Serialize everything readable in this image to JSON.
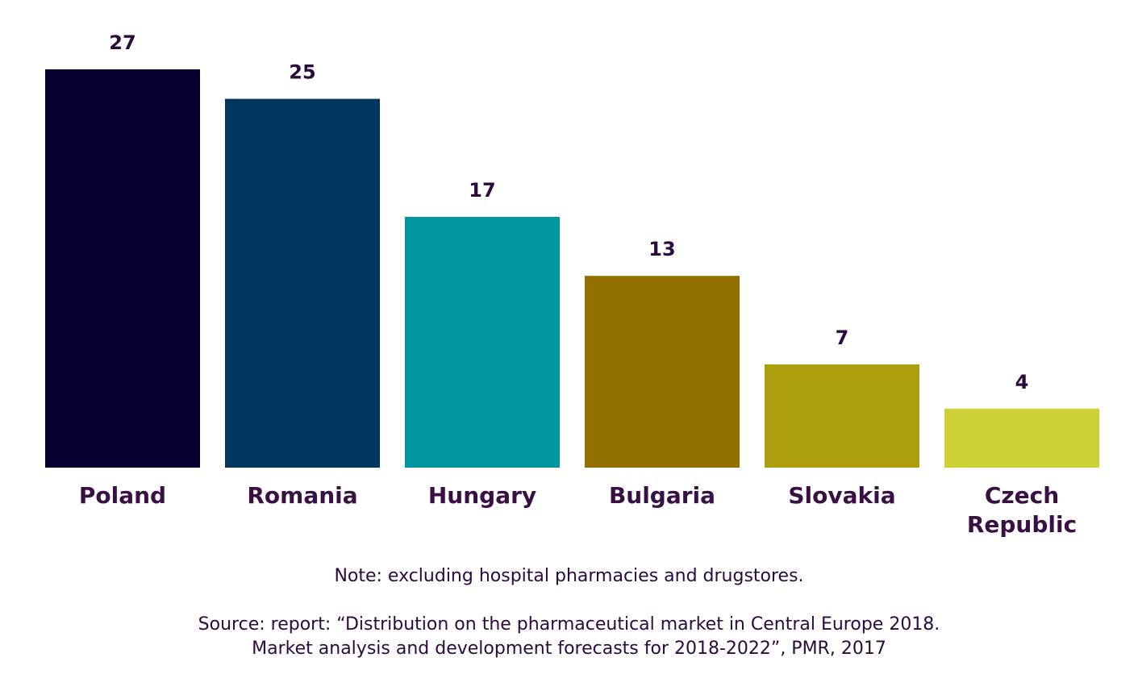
{
  "chart_data": {
    "type": "bar",
    "categories": [
      "Poland",
      "Romania",
      "Hungary",
      "Bulgaria",
      "Slovakia",
      "Czech Republic"
    ],
    "category_lines": [
      [
        "Poland"
      ],
      [
        "Romania"
      ],
      [
        "Hungary"
      ],
      [
        "Bulgaria"
      ],
      [
        "Slovakia"
      ],
      [
        "Czech",
        "Republic"
      ]
    ],
    "values": [
      27,
      25,
      17,
      13,
      7,
      4
    ],
    "value_labels": [
      "27",
      "25",
      "17",
      "13",
      "7",
      "4"
    ],
    "colors": [
      "#06002e",
      "#003660",
      "#0097a0",
      "#937100",
      "#ac9f0f",
      "#cbd035"
    ],
    "title": "",
    "xlabel": "",
    "ylabel": "",
    "ylim": [
      0,
      27
    ],
    "grid": false,
    "legend": "none"
  },
  "footer": {
    "note": "Note: excluding hospital pharmacies and drugstores.",
    "source_line1": "Source: report: “Distribution on the pharmaceutical market in Central Europe 2018.",
    "source_line2": "Market analysis and development forecasts for 2018-2022”, PMR, 2017"
  }
}
